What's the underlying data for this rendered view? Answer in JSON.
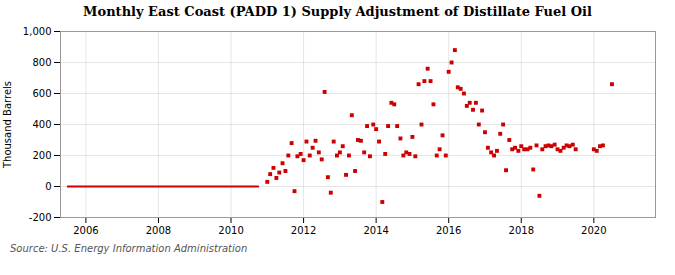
{
  "chart_data": {
    "type": "scatter",
    "title": "Monthly East Coast (PADD 1) Supply Adjustment of Distillate Fuel Oil",
    "ylabel": "Thousand Barrels",
    "source": "Source: U.S. Energy Information Administration",
    "xlim": [
      2005.3,
      2021.7
    ],
    "xticks": [
      2006,
      2008,
      2010,
      2012,
      2014,
      2016,
      2018,
      2020
    ],
    "ylim": [
      -200,
      1000
    ],
    "yticks": [
      -200,
      0,
      200,
      400,
      600,
      800,
      {
        "value": 1000,
        "label": "1,000"
      }
    ],
    "grid": true,
    "series": [
      {
        "type": "line",
        "color": "#cc0000",
        "x": [
          2005.5,
          2010.75
        ],
        "values": [
          0,
          0
        ]
      },
      {
        "type": "scatter",
        "color": "#cc0000",
        "marker": "square",
        "x": [
          2011.0,
          2011.08,
          2011.17,
          2011.25,
          2011.33,
          2011.42,
          2011.5,
          2011.58,
          2011.67,
          2011.75,
          2011.83,
          2011.92,
          2012.0,
          2012.08,
          2012.17,
          2012.25,
          2012.33,
          2012.42,
          2012.5,
          2012.58,
          2012.67,
          2012.75,
          2012.83,
          2012.92,
          2013.0,
          2013.08,
          2013.17,
          2013.25,
          2013.33,
          2013.42,
          2013.5,
          2013.58,
          2013.67,
          2013.75,
          2013.83,
          2013.92,
          2014.0,
          2014.08,
          2014.17,
          2014.25,
          2014.33,
          2014.42,
          2014.5,
          2014.58,
          2014.67,
          2014.75,
          2014.83,
          2014.92,
          2015.0,
          2015.08,
          2015.17,
          2015.25,
          2015.33,
          2015.42,
          2015.5,
          2015.58,
          2015.67,
          2015.75,
          2015.83,
          2015.92,
          2016.0,
          2016.08,
          2016.17,
          2016.25,
          2016.33,
          2016.42,
          2016.5,
          2016.58,
          2016.67,
          2016.75,
          2016.83,
          2016.92,
          2017.0,
          2017.08,
          2017.17,
          2017.25,
          2017.33,
          2017.42,
          2017.5,
          2017.58,
          2017.67,
          2017.75,
          2017.83,
          2017.92,
          2018.0,
          2018.08,
          2018.17,
          2018.25,
          2018.33,
          2018.42,
          2018.5,
          2018.58,
          2018.67,
          2018.75,
          2018.83,
          2018.92,
          2019.0,
          2019.08,
          2019.17,
          2019.25,
          2019.33,
          2019.42,
          2019.5,
          2020.0,
          2020.08,
          2020.17,
          2020.25,
          2020.5
        ],
        "values": [
          30,
          80,
          120,
          55,
          90,
          150,
          100,
          200,
          280,
          -30,
          195,
          210,
          170,
          290,
          200,
          250,
          295,
          220,
          175,
          610,
          60,
          -40,
          290,
          200,
          220,
          260,
          75,
          200,
          460,
          100,
          300,
          295,
          220,
          390,
          195,
          400,
          370,
          290,
          -100,
          210,
          390,
          540,
          530,
          390,
          310,
          200,
          220,
          210,
          320,
          195,
          660,
          400,
          680,
          760,
          680,
          530,
          200,
          240,
          330,
          200,
          740,
          800,
          880,
          640,
          630,
          600,
          520,
          540,
          495,
          540,
          400,
          490,
          350,
          250,
          220,
          200,
          230,
          340,
          400,
          105,
          300,
          240,
          250,
          230,
          260,
          240,
          240,
          250,
          110,
          265,
          -60,
          240,
          260,
          265,
          260,
          270,
          240,
          230,
          250,
          265,
          260,
          270,
          240,
          240,
          230,
          260,
          265,
          660
        ]
      }
    ]
  }
}
